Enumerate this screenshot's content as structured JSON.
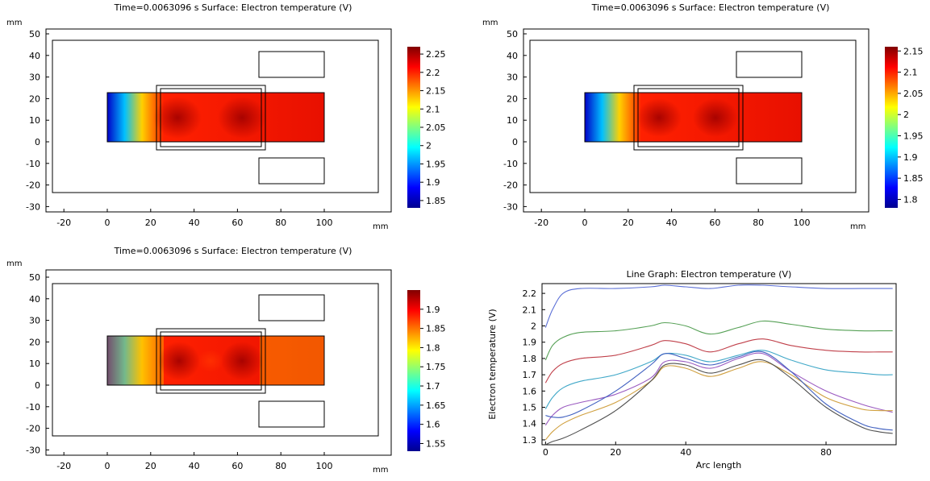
{
  "panels": [
    {
      "title": "Time=0.0063096 s   Surface: Electron temperature (V)",
      "x_unit": "mm",
      "y_unit": "mm",
      "x_ticks": [
        "-20",
        "0",
        "20",
        "40",
        "60",
        "80",
        "100"
      ],
      "y_ticks": [
        "50",
        "40",
        "30",
        "20",
        "10",
        "0",
        "-10",
        "-20",
        "-30"
      ],
      "colorbar_ticks": [
        "2.25",
        "2.2",
        "2.15",
        "2.1",
        "2.05",
        "2",
        "1.95",
        "1.9",
        "1.85"
      ],
      "colorbar_range": [
        1.83,
        2.27
      ]
    },
    {
      "title": "Time=0.0063096 s   Surface: Electron temperature (V)",
      "x_unit": "mm",
      "y_unit": "mm",
      "x_ticks": [
        "-20",
        "0",
        "20",
        "40",
        "60",
        "80",
        "100"
      ],
      "y_ticks": [
        "50",
        "40",
        "30",
        "20",
        "10",
        "0",
        "-10",
        "-20",
        "-30"
      ],
      "colorbar_ticks": [
        "2.15",
        "2.1",
        "2.05",
        "2",
        "1.95",
        "1.9",
        "1.85",
        "1.8"
      ],
      "colorbar_range": [
        1.78,
        2.16
      ]
    },
    {
      "title": "Time=0.0063096 s   Surface: Electron temperature (V)",
      "x_unit": "mm",
      "y_unit": "mm",
      "x_ticks": [
        "-20",
        "0",
        "20",
        "40",
        "60",
        "80",
        "100"
      ],
      "y_ticks": [
        "50",
        "40",
        "30",
        "20",
        "10",
        "0",
        "-10",
        "-20",
        "-30"
      ],
      "colorbar_ticks": [
        "1.9",
        "1.85",
        "1.8",
        "1.75",
        "1.7",
        "1.65",
        "1.6",
        "1.55"
      ],
      "colorbar_range": [
        1.53,
        1.95
      ]
    }
  ],
  "chart_data": {
    "type": "line",
    "title": "Line Graph: Electron temperature (V)",
    "xlabel": "Arc length",
    "ylabel": "Electron temperature (V)",
    "xlim": [
      -1,
      100
    ],
    "ylim": [
      1.27,
      2.26
    ],
    "x_ticks": [
      0,
      20,
      40,
      80
    ],
    "y_ticks": [
      2.2,
      2.1,
      2,
      1.9,
      1.8,
      1.7,
      1.6,
      1.5,
      1.4,
      1.3
    ],
    "x": [
      0,
      2,
      5,
      10,
      20,
      30,
      34,
      40,
      47,
      55,
      62,
      70,
      80,
      90,
      95,
      99
    ],
    "series": [
      {
        "color": "#5b6fd6",
        "values": [
          1.99,
          2.1,
          2.2,
          2.23,
          2.23,
          2.24,
          2.25,
          2.24,
          2.23,
          2.25,
          2.25,
          2.24,
          2.23,
          2.23,
          2.23,
          2.23
        ]
      },
      {
        "color": "#55a055",
        "values": [
          1.79,
          1.88,
          1.93,
          1.96,
          1.97,
          2.0,
          2.02,
          2.0,
          1.95,
          1.99,
          2.03,
          2.01,
          1.98,
          1.97,
          1.97,
          1.97
        ]
      },
      {
        "color": "#c0404a",
        "values": [
          1.65,
          1.72,
          1.77,
          1.8,
          1.82,
          1.88,
          1.91,
          1.89,
          1.84,
          1.89,
          1.92,
          1.88,
          1.85,
          1.84,
          1.84,
          1.84
        ]
      },
      {
        "color": "#40a8c8",
        "values": [
          1.49,
          1.56,
          1.62,
          1.66,
          1.7,
          1.78,
          1.83,
          1.82,
          1.78,
          1.82,
          1.85,
          1.79,
          1.73,
          1.71,
          1.7,
          1.7
        ]
      },
      {
        "color": "#9a5ac0",
        "values": [
          1.39,
          1.45,
          1.5,
          1.53,
          1.58,
          1.68,
          1.78,
          1.78,
          1.74,
          1.8,
          1.83,
          1.72,
          1.6,
          1.52,
          1.49,
          1.47
        ]
      },
      {
        "color": "#d0a040",
        "values": [
          1.3,
          1.35,
          1.4,
          1.45,
          1.53,
          1.66,
          1.75,
          1.74,
          1.69,
          1.74,
          1.78,
          1.7,
          1.56,
          1.49,
          1.48,
          1.48
        ]
      },
      {
        "color": "#4060c0",
        "values": [
          1.45,
          1.44,
          1.44,
          1.48,
          1.6,
          1.76,
          1.83,
          1.8,
          1.76,
          1.81,
          1.84,
          1.72,
          1.52,
          1.4,
          1.37,
          1.36
        ]
      },
      {
        "color": "#505050",
        "values": [
          1.27,
          1.29,
          1.31,
          1.36,
          1.48,
          1.66,
          1.76,
          1.76,
          1.71,
          1.76,
          1.79,
          1.68,
          1.5,
          1.38,
          1.35,
          1.34
        ]
      }
    ]
  }
}
